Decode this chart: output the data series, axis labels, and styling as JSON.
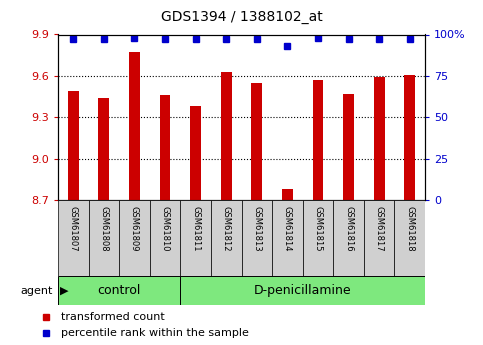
{
  "title": "GDS1394 / 1388102_at",
  "samples": [
    "GSM61807",
    "GSM61808",
    "GSM61809",
    "GSM61810",
    "GSM61811",
    "GSM61812",
    "GSM61813",
    "GSM61814",
    "GSM61815",
    "GSM61816",
    "GSM61817",
    "GSM61818"
  ],
  "bar_values": [
    9.49,
    9.44,
    9.77,
    9.46,
    9.38,
    9.63,
    9.55,
    8.78,
    9.57,
    9.47,
    9.59,
    9.61
  ],
  "percentile_values": [
    97,
    97,
    98,
    97,
    97,
    97,
    97,
    93,
    98,
    97,
    97,
    97
  ],
  "ymin": 8.7,
  "ymax": 9.9,
  "yticks": [
    8.7,
    9.0,
    9.3,
    9.6,
    9.9
  ],
  "y2min": 0,
  "y2max": 100,
  "y2ticks": [
    0,
    25,
    50,
    75,
    100
  ],
  "bar_color": "#cc0000",
  "dot_color": "#0000cc",
  "n_control": 4,
  "n_treat": 8,
  "control_label": "control",
  "treatment_label": "D-penicillamine",
  "agent_label": "agent",
  "legend_bar_label": "transformed count",
  "legend_dot_label": "percentile rank within the sample",
  "left_axis_color": "#cc0000",
  "right_axis_color": "#0000cc",
  "sample_bg": "#d0d0d0",
  "treatment_bg": "#7ee87e",
  "gridline_ticks": [
    9.0,
    9.3,
    9.6
  ]
}
